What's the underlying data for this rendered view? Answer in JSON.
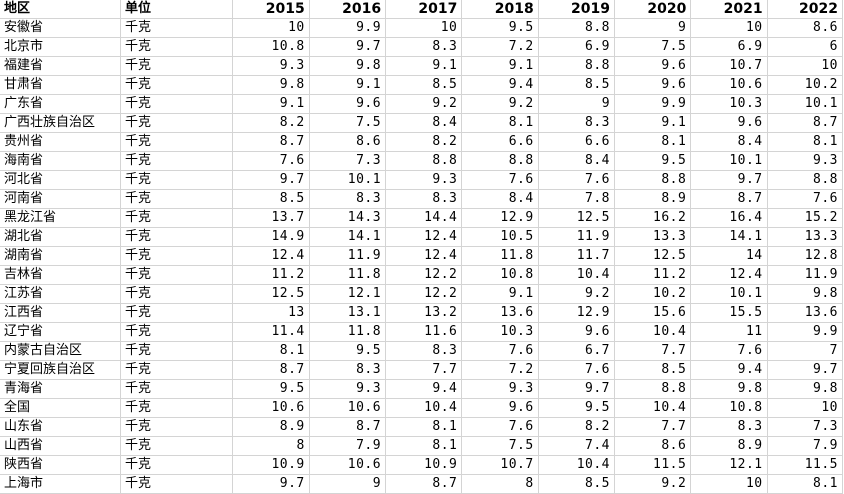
{
  "headers": [
    "地区",
    "单位",
    "2015",
    "2016",
    "2017",
    "2018",
    "2019",
    "2020",
    "2021",
    "2022"
  ],
  "rows": [
    {
      "region": "安徽省",
      "unit": "千克",
      "values": [
        "10",
        "9.9",
        "10",
        "9.5",
        "8.8",
        "9",
        "10",
        "8.6"
      ]
    },
    {
      "region": "北京市",
      "unit": "千克",
      "values": [
        "10.8",
        "9.7",
        "8.3",
        "7.2",
        "6.9",
        "7.5",
        "6.9",
        "6"
      ]
    },
    {
      "region": "福建省",
      "unit": "千克",
      "values": [
        "9.3",
        "9.8",
        "9.1",
        "9.1",
        "8.8",
        "9.6",
        "10.7",
        "10"
      ]
    },
    {
      "region": "甘肃省",
      "unit": "千克",
      "values": [
        "9.8",
        "9.1",
        "8.5",
        "9.4",
        "8.5",
        "9.6",
        "10.6",
        "10.2"
      ]
    },
    {
      "region": "广东省",
      "unit": "千克",
      "values": [
        "9.1",
        "9.6",
        "9.2",
        "9.2",
        "9",
        "9.9",
        "10.3",
        "10.1"
      ]
    },
    {
      "region": "广西壮族自治区",
      "unit": "千克",
      "values": [
        "8.2",
        "7.5",
        "8.4",
        "8.1",
        "8.3",
        "9.1",
        "9.6",
        "8.7"
      ]
    },
    {
      "region": "贵州省",
      "unit": "千克",
      "values": [
        "8.7",
        "8.6",
        "8.2",
        "6.6",
        "6.6",
        "8.1",
        "8.4",
        "8.1"
      ]
    },
    {
      "region": "海南省",
      "unit": "千克",
      "values": [
        "7.6",
        "7.3",
        "8.8",
        "8.8",
        "8.4",
        "9.5",
        "10.1",
        "9.3"
      ]
    },
    {
      "region": "河北省",
      "unit": "千克",
      "values": [
        "9.7",
        "10.1",
        "9.3",
        "7.6",
        "7.6",
        "8.8",
        "9.7",
        "8.8"
      ]
    },
    {
      "region": "河南省",
      "unit": "千克",
      "values": [
        "8.5",
        "8.3",
        "8.3",
        "8.4",
        "7.8",
        "8.9",
        "8.7",
        "7.6"
      ]
    },
    {
      "region": "黑龙江省",
      "unit": "千克",
      "values": [
        "13.7",
        "14.3",
        "14.4",
        "12.9",
        "12.5",
        "16.2",
        "16.4",
        "15.2"
      ]
    },
    {
      "region": "湖北省",
      "unit": "千克",
      "values": [
        "14.9",
        "14.1",
        "12.4",
        "10.5",
        "11.9",
        "13.3",
        "14.1",
        "13.3"
      ]
    },
    {
      "region": "湖南省",
      "unit": "千克",
      "values": [
        "12.4",
        "11.9",
        "12.4",
        "11.8",
        "11.7",
        "12.5",
        "14",
        "12.8"
      ]
    },
    {
      "region": "吉林省",
      "unit": "千克",
      "values": [
        "11.2",
        "11.8",
        "12.2",
        "10.8",
        "10.4",
        "11.2",
        "12.4",
        "11.9"
      ]
    },
    {
      "region": "江苏省",
      "unit": "千克",
      "values": [
        "12.5",
        "12.1",
        "12.2",
        "9.1",
        "9.2",
        "10.2",
        "10.1",
        "9.8"
      ]
    },
    {
      "region": "江西省",
      "unit": "千克",
      "values": [
        "13",
        "13.1",
        "13.2",
        "13.6",
        "12.9",
        "15.6",
        "15.5",
        "13.6"
      ]
    },
    {
      "region": "辽宁省",
      "unit": "千克",
      "values": [
        "11.4",
        "11.8",
        "11.6",
        "10.3",
        "9.6",
        "10.4",
        "11",
        "9.9"
      ]
    },
    {
      "region": "内蒙古自治区",
      "unit": "千克",
      "values": [
        "8.1",
        "9.5",
        "8.3",
        "7.6",
        "6.7",
        "7.7",
        "7.6",
        "7"
      ]
    },
    {
      "region": "宁夏回族自治区",
      "unit": "千克",
      "values": [
        "8.7",
        "8.3",
        "7.7",
        "7.2",
        "7.6",
        "8.5",
        "9.4",
        "9.7"
      ]
    },
    {
      "region": "青海省",
      "unit": "千克",
      "values": [
        "9.5",
        "9.3",
        "9.4",
        "9.3",
        "9.7",
        "8.8",
        "9.8",
        "9.8"
      ]
    },
    {
      "region": "全国",
      "unit": "千克",
      "values": [
        "10.6",
        "10.6",
        "10.4",
        "9.6",
        "9.5",
        "10.4",
        "10.8",
        "10"
      ]
    },
    {
      "region": "山东省",
      "unit": "千克",
      "values": [
        "8.9",
        "8.7",
        "8.1",
        "7.6",
        "8.2",
        "7.7",
        "8.3",
        "7.3"
      ]
    },
    {
      "region": "山西省",
      "unit": "千克",
      "values": [
        "8",
        "7.9",
        "8.1",
        "7.5",
        "7.4",
        "8.6",
        "8.9",
        "7.9"
      ]
    },
    {
      "region": "陕西省",
      "unit": "千克",
      "values": [
        "10.9",
        "10.6",
        "10.9",
        "10.7",
        "10.4",
        "11.5",
        "12.1",
        "11.5"
      ]
    },
    {
      "region": "上海市",
      "unit": "千克",
      "values": [
        "9.7",
        "9",
        "8.7",
        "8",
        "8.5",
        "9.2",
        "10",
        "8.1"
      ]
    }
  ]
}
